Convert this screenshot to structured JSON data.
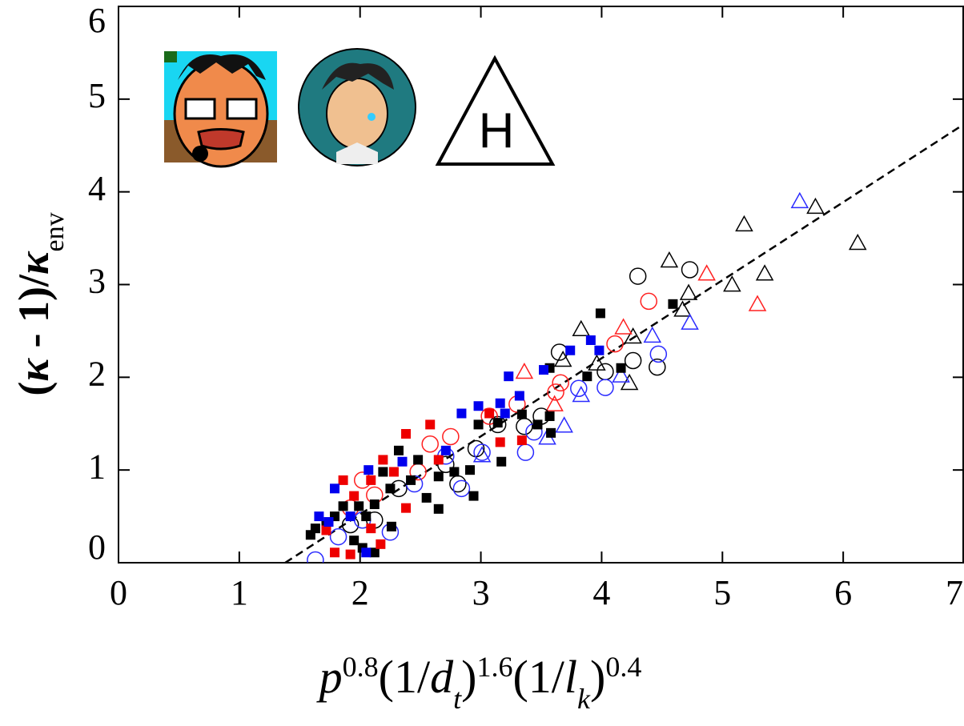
{
  "chart_data": {
    "type": "scatter",
    "xlabel_parts": [
      "p",
      "0.8",
      "(1/",
      "d",
      "t",
      ")",
      "1.6",
      "(1/",
      "l",
      "k",
      ")",
      "0.4"
    ],
    "ylabel_parts": [
      "(",
      "κ",
      " - 1)/",
      "κ",
      "env"
    ],
    "annotation": "H",
    "xlim": [
      0,
      7
    ],
    "ylim": [
      0,
      6
    ],
    "xticks": [
      0,
      1,
      2,
      3,
      4,
      5,
      6,
      7
    ],
    "yticks": [
      0,
      1,
      2,
      3,
      4,
      5,
      6
    ],
    "series": [
      {
        "marker": "triangle",
        "color": "#000000",
        "x": [
          4.56,
          5.77,
          5.18,
          6.12,
          5.08,
          5.35,
          4.72,
          4.67,
          3.83,
          4.26,
          4.23,
          3.68,
          3.96
        ],
        "y": [
          3.25,
          3.83,
          3.64,
          3.44,
          2.99,
          3.11,
          2.9,
          2.72,
          2.51,
          2.43,
          1.93,
          2.18,
          2.14
        ]
      },
      {
        "marker": "triangle",
        "color": "#2b2bff",
        "x": [
          5.64,
          4.73,
          4.42,
          3.83,
          3.69,
          3.55,
          3.01,
          4.16
        ],
        "y": [
          3.89,
          2.58,
          2.44,
          1.8,
          1.47,
          1.34,
          1.15,
          2.01
        ]
      },
      {
        "marker": "triangle",
        "color": "#ff2020",
        "x": [
          4.87,
          5.29,
          3.36,
          4.18,
          3.61
        ],
        "y": [
          3.11,
          2.78,
          2.05,
          2.53,
          1.7
        ]
      },
      {
        "marker": "circle",
        "color": "#000000",
        "x": [
          4.3,
          4.73,
          4.46,
          4.26,
          4.03,
          3.65,
          3.36,
          3.5,
          3.14,
          2.96,
          2.71,
          2.81,
          2.32,
          2.12,
          1.92
        ],
        "y": [
          3.09,
          3.16,
          2.11,
          2.18,
          2.06,
          2.27,
          1.47,
          1.58,
          1.49,
          1.23,
          1.06,
          0.85,
          0.8,
          0.46,
          0.41
        ]
      },
      {
        "marker": "circle",
        "color": "#ff2020",
        "x": [
          4.39,
          4.11,
          3.62,
          3.66,
          3.3,
          3.07,
          2.75,
          2.58,
          2.48,
          2.12,
          2.02,
          1.92
        ],
        "y": [
          2.82,
          2.36,
          1.84,
          1.94,
          1.71,
          1.58,
          1.36,
          1.28,
          0.98,
          0.73,
          0.89,
          0.59
        ]
      },
      {
        "marker": "circle",
        "color": "#2b2bff",
        "x": [
          4.47,
          4.03,
          3.81,
          3.44,
          3.37,
          3.01,
          2.71,
          2.84,
          2.45,
          2.25,
          1.82,
          1.63,
          2.02
        ],
        "y": [
          2.25,
          1.89,
          1.88,
          1.41,
          1.19,
          1.19,
          1.15,
          0.8,
          0.85,
          0.33,
          0.28,
          0.03,
          0.46
        ]
      },
      {
        "marker": "square",
        "color": "#000000",
        "x": [
          4.59,
          3.99,
          4.16,
          3.88,
          3.57,
          3.57,
          3.58,
          3.47,
          3.34,
          3.14,
          2.98,
          3.17,
          2.91,
          2.78,
          2.65,
          2.48,
          2.32,
          2.19,
          2.42,
          2.55,
          2.65,
          2.25,
          2.12,
          1.99,
          1.86,
          1.79,
          1.72,
          1.63,
          1.59,
          1.95,
          2.02,
          2.12,
          2.26,
          2.05,
          2.94
        ],
        "y": [
          2.79,
          2.69,
          2.1,
          2.01,
          2.1,
          1.58,
          1.4,
          1.49,
          1.6,
          1.51,
          1.49,
          1.09,
          1.0,
          0.98,
          0.93,
          1.11,
          1.21,
          0.98,
          0.89,
          0.7,
          0.58,
          0.8,
          0.63,
          0.61,
          0.61,
          0.5,
          0.41,
          0.37,
          0.3,
          0.24,
          0.16,
          0.11,
          0.39,
          0.5,
          0.72
        ]
      },
      {
        "marker": "square",
        "color": "#ee0000",
        "x": [
          3.07,
          3.34,
          3.16,
          2.58,
          2.38,
          2.65,
          2.19,
          2.28,
          2.09,
          1.86,
          1.95,
          2.38,
          1.79,
          1.92,
          2.17,
          2.09,
          1.72
        ],
        "y": [
          1.61,
          1.32,
          1.3,
          1.49,
          1.39,
          1.11,
          1.11,
          0.98,
          0.89,
          0.89,
          0.72,
          0.59,
          0.11,
          0.09,
          0.2,
          0.37,
          0.35
        ]
      },
      {
        "marker": "square",
        "color": "#0000ee",
        "x": [
          3.74,
          3.91,
          3.98,
          3.52,
          3.23,
          3.32,
          3.16,
          2.98,
          2.84,
          3.2,
          2.71,
          2.35,
          2.07,
          1.79,
          1.74,
          1.66,
          1.92,
          2.05
        ],
        "y": [
          2.29,
          2.4,
          2.29,
          2.08,
          2.01,
          1.8,
          1.72,
          1.69,
          1.61,
          1.61,
          1.21,
          1.09,
          1.0,
          0.8,
          0.44,
          0.5,
          0.5,
          0.11
        ]
      }
    ],
    "fit_line": {
      "color": "#000000",
      "x": [
        1.38,
        7
      ],
      "y": [
        0,
        4.73
      ]
    }
  }
}
